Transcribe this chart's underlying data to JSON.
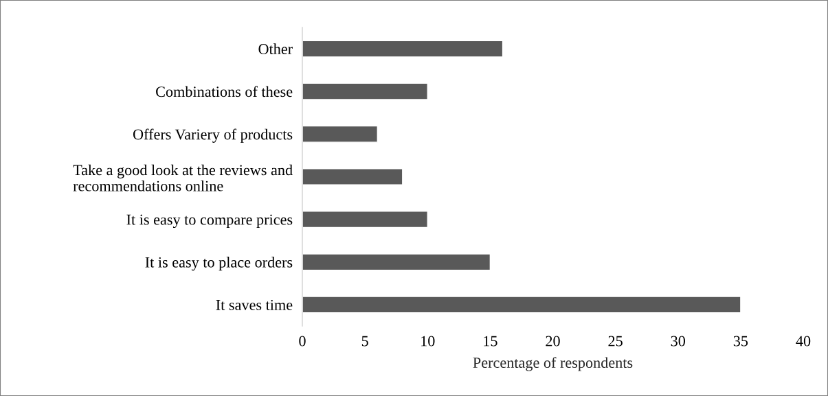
{
  "chart_data": {
    "type": "bar",
    "orientation": "horizontal",
    "xlabel": "Percentage of respondents",
    "categories": [
      "Other",
      "Combinations of these",
      "Offers Variery of products",
      "Take a good look at the reviews and\nrecommendations online",
      "It is easy to compare prices",
      "It is easy to place orders",
      "It saves time"
    ],
    "values": [
      16,
      10,
      6,
      8,
      10,
      15,
      35
    ],
    "color": "#595959",
    "xlim": [
      0,
      40
    ],
    "xticks": [
      0,
      5,
      10,
      15,
      20,
      25,
      30,
      35,
      40
    ],
    "grid": false,
    "legend": false
  }
}
